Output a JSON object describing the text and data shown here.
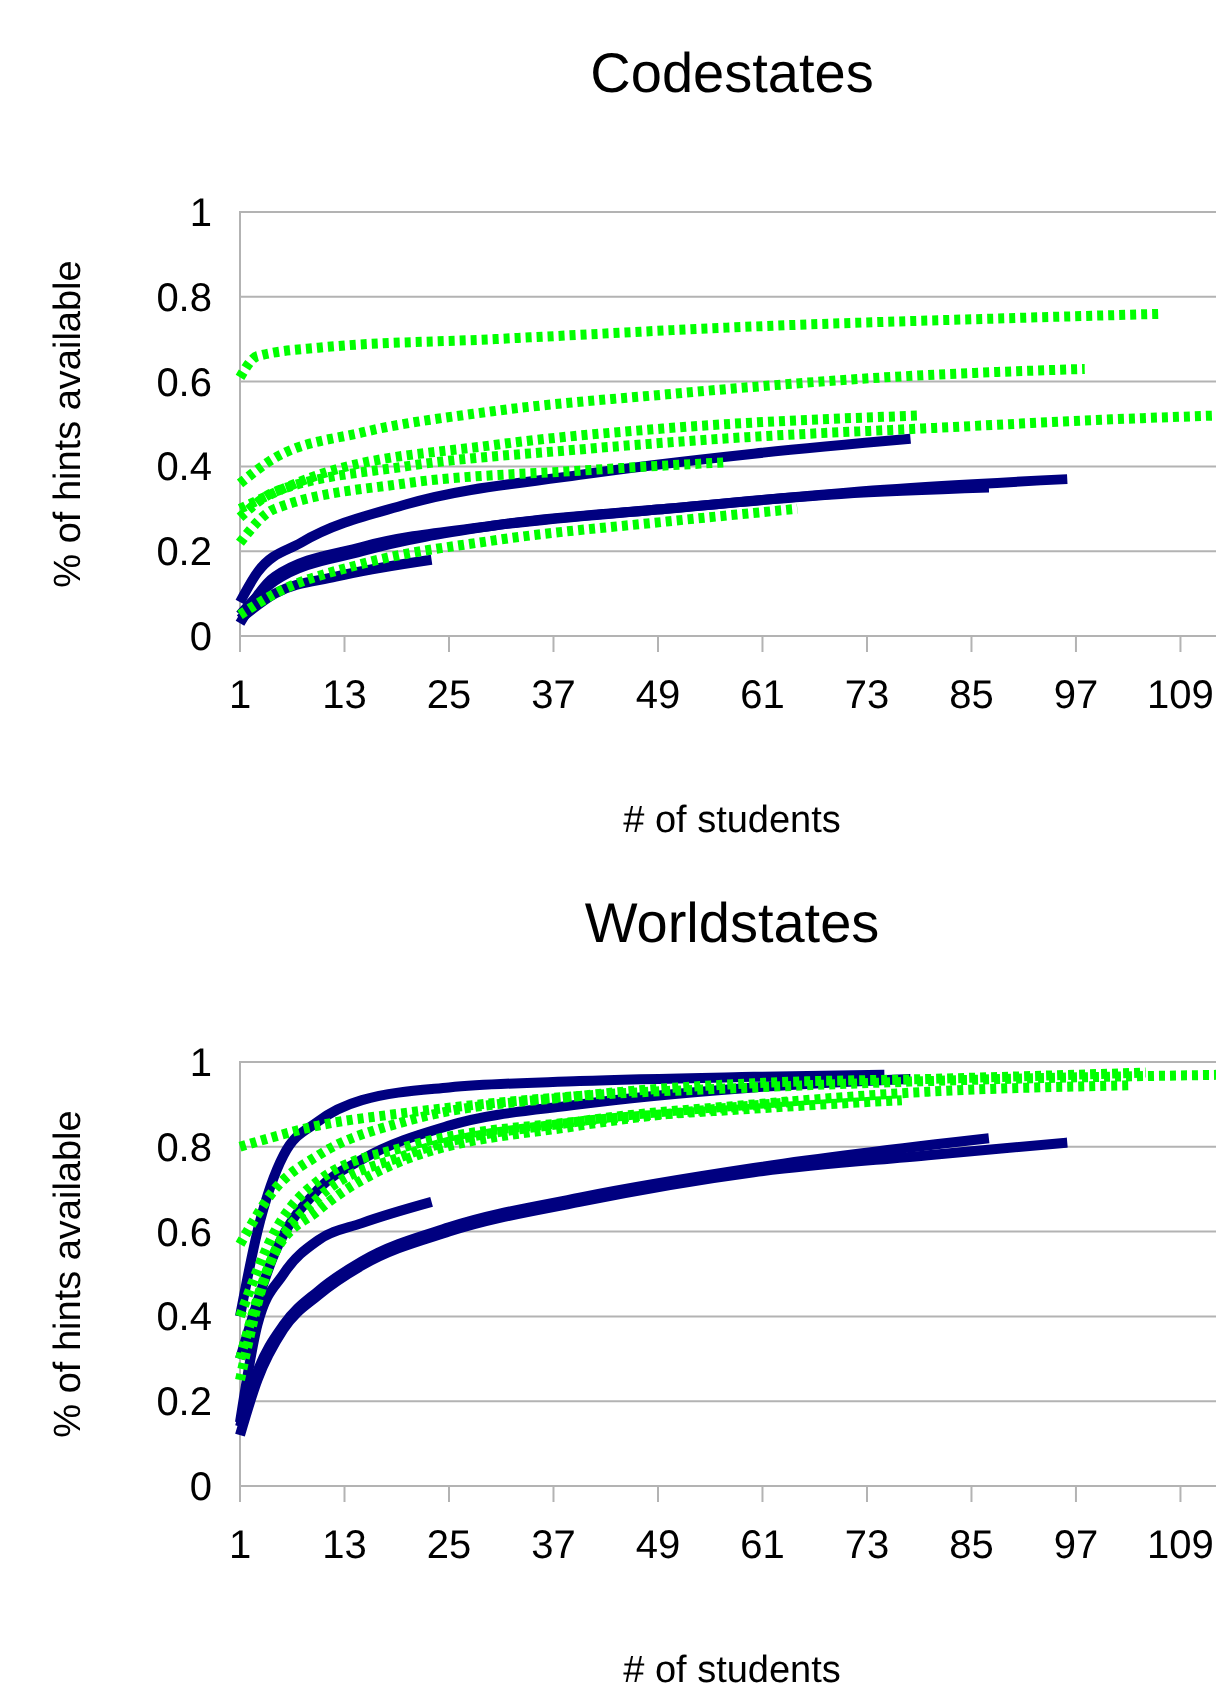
{
  "chart_data": [
    {
      "type": "line",
      "title": "Codestates",
      "xlabel": "# of students",
      "ylabel": "% of hints available",
      "xlim": [
        1,
        114
      ],
      "xticks": [
        1,
        13,
        25,
        37,
        49,
        61,
        73,
        85,
        97,
        109
      ],
      "ylim": [
        0,
        1
      ],
      "yticks": [
        0,
        0.2,
        0.4,
        0.6,
        0.8,
        1
      ],
      "grid": "y",
      "marker": "none",
      "series": [
        {
          "color": "#000080",
          "line_style": "solid",
          "x": [
            1,
            3,
            8,
            20,
            40,
            60,
            78
          ],
          "values": [
            0.08,
            0.15,
            0.22,
            0.31,
            0.38,
            0.43,
            0.465
          ]
        },
        {
          "color": "#000080",
          "line_style": "solid",
          "x": [
            1,
            5,
            15,
            30,
            50,
            75,
            96
          ],
          "values": [
            0.03,
            0.14,
            0.21,
            0.26,
            0.3,
            0.345,
            0.37
          ]
        },
        {
          "color": "#000080",
          "line_style": "solid",
          "x": [
            1,
            5,
            15,
            30,
            50,
            70,
            87
          ],
          "values": [
            0.05,
            0.13,
            0.2,
            0.26,
            0.3,
            0.335,
            0.35
          ]
        },
        {
          "color": "#000080",
          "line_style": "solid",
          "x": [
            1,
            5,
            12,
            23
          ],
          "values": [
            0.04,
            0.1,
            0.14,
            0.18
          ]
        },
        {
          "color": "#00ff00",
          "line_style": "dotted",
          "x": [
            1,
            3,
            10,
            30,
            60,
            90,
            107
          ],
          "values": [
            0.61,
            0.66,
            0.68,
            0.7,
            0.73,
            0.75,
            0.76
          ]
        },
        {
          "color": "#00ff00",
          "line_style": "dotted",
          "x": [
            1,
            5,
            15,
            30,
            50,
            75,
            98
          ],
          "values": [
            0.36,
            0.42,
            0.48,
            0.53,
            0.57,
            0.61,
            0.63
          ]
        },
        {
          "color": "#00ff00",
          "line_style": "dotted",
          "x": [
            1,
            5,
            20,
            40,
            60,
            80,
            100,
            113
          ],
          "values": [
            0.28,
            0.34,
            0.4,
            0.44,
            0.47,
            0.49,
            0.51,
            0.52
          ]
        },
        {
          "color": "#00ff00",
          "line_style": "dotted",
          "x": [
            1,
            10,
            30,
            50,
            79
          ],
          "values": [
            0.3,
            0.38,
            0.45,
            0.49,
            0.52
          ]
        },
        {
          "color": "#00ff00",
          "line_style": "dotted",
          "x": [
            1,
            5,
            20,
            40,
            57
          ],
          "values": [
            0.22,
            0.3,
            0.36,
            0.39,
            0.41
          ]
        },
        {
          "color": "#00ff00",
          "line_style": "dotted",
          "x": [
            1,
            5,
            15,
            30,
            50,
            65
          ],
          "values": [
            0.05,
            0.1,
            0.17,
            0.225,
            0.27,
            0.3
          ]
        }
      ]
    },
    {
      "type": "line",
      "title": "Worldstates",
      "xlabel": "# of students",
      "ylabel": "% of hints available",
      "xlim": [
        1,
        114
      ],
      "xticks": [
        1,
        13,
        25,
        37,
        49,
        61,
        73,
        85,
        97,
        109
      ],
      "ylim": [
        0,
        1
      ],
      "yticks": [
        0,
        0.2,
        0.4,
        0.6,
        0.8,
        1
      ],
      "grid": "y",
      "marker": "none",
      "series": [
        {
          "color": "#000080",
          "line_style": "solid",
          "x": [
            1,
            3,
            6,
            10,
            15,
            25,
            40,
            60,
            75
          ],
          "values": [
            0.4,
            0.6,
            0.78,
            0.86,
            0.91,
            0.94,
            0.955,
            0.965,
            0.97
          ]
        },
        {
          "color": "#000080",
          "line_style": "solid",
          "x": [
            1,
            5,
            10,
            15,
            25,
            40,
            60,
            78
          ],
          "values": [
            0.3,
            0.55,
            0.7,
            0.77,
            0.85,
            0.9,
            0.94,
            0.96
          ]
        },
        {
          "color": "#000080",
          "line_style": "solid",
          "x": [
            1,
            3,
            6,
            10,
            15,
            23
          ],
          "values": [
            0.15,
            0.38,
            0.5,
            0.58,
            0.62,
            0.67
          ]
        },
        {
          "color": "#000080",
          "line_style": "solid",
          "x": [
            1,
            3,
            6,
            10,
            15,
            25,
            40,
            60,
            80,
            96
          ],
          "values": [
            0.12,
            0.25,
            0.37,
            0.45,
            0.52,
            0.6,
            0.67,
            0.74,
            0.78,
            0.81
          ]
        },
        {
          "color": "#000080",
          "line_style": "solid",
          "x": [
            1,
            3,
            6,
            10,
            15,
            25,
            40,
            60,
            87
          ],
          "values": [
            0.14,
            0.27,
            0.38,
            0.46,
            0.53,
            0.61,
            0.68,
            0.75,
            0.82
          ]
        },
        {
          "color": "#00ff00",
          "line_style": "dotted",
          "x": [
            1,
            10,
            20,
            40,
            60,
            80,
            114
          ],
          "values": [
            0.8,
            0.85,
            0.88,
            0.92,
            0.94,
            0.955,
            0.97
          ]
        },
        {
          "color": "#00ff00",
          "line_style": "dotted",
          "x": [
            1,
            5,
            10,
            20,
            40,
            60,
            80,
            105
          ],
          "values": [
            0.57,
            0.7,
            0.78,
            0.86,
            0.92,
            0.95,
            0.96,
            0.975
          ]
        },
        {
          "color": "#00ff00",
          "line_style": "dotted",
          "x": [
            1,
            4,
            10,
            20,
            40,
            60,
            80,
            103
          ],
          "values": [
            0.25,
            0.5,
            0.68,
            0.78,
            0.86,
            0.9,
            0.93,
            0.945
          ]
        },
        {
          "color": "#00ff00",
          "line_style": "dotted",
          "x": [
            1,
            5,
            10,
            20,
            40,
            60,
            77
          ],
          "values": [
            0.4,
            0.6,
            0.72,
            0.8,
            0.86,
            0.89,
            0.91
          ]
        },
        {
          "color": "#00ff00",
          "line_style": "dotted",
          "x": [
            1,
            5,
            10,
            20,
            40,
            64
          ],
          "values": [
            0.3,
            0.55,
            0.65,
            0.77,
            0.85,
            0.905
          ]
        }
      ]
    }
  ]
}
